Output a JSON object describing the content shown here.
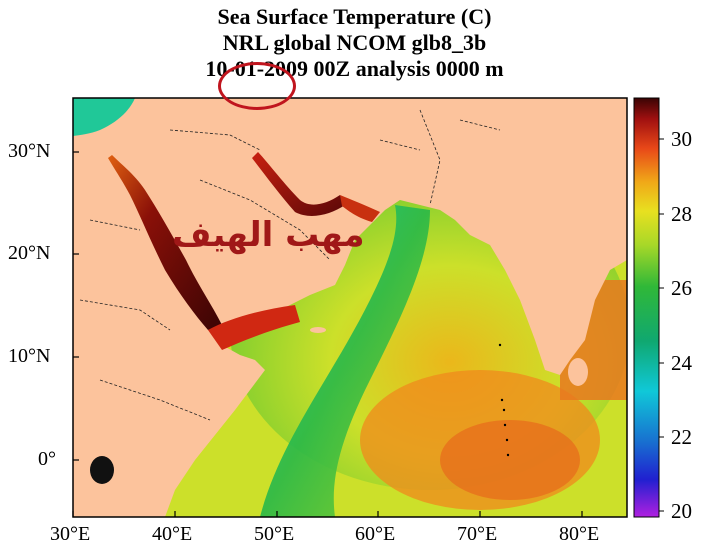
{
  "title": {
    "line1": "Sea Surface Temperature (C)",
    "line2": "NRL global NCOM glb8_3b",
    "line3": "10-01-2009 00Z analysis   0000 m"
  },
  "annotation_text": "مهب الهيف",
  "axes": {
    "y_ticks": [
      "30°N",
      "20°N",
      "10°N",
      "0°"
    ],
    "x_ticks": [
      "30°E",
      "40°E",
      "50°E",
      "60°E",
      "70°E",
      "80°E"
    ]
  },
  "colorbar": {
    "ticks": [
      "30",
      "28",
      "26",
      "24",
      "22",
      "20"
    ],
    "range": [
      20,
      31
    ]
  },
  "colors": {
    "land": "#fcc39c",
    "annotation_red": "#c0151e",
    "hot": "#5a0a0a",
    "warm": "#e8501c",
    "mild": "#cce02a",
    "cool": "#28b848"
  }
}
